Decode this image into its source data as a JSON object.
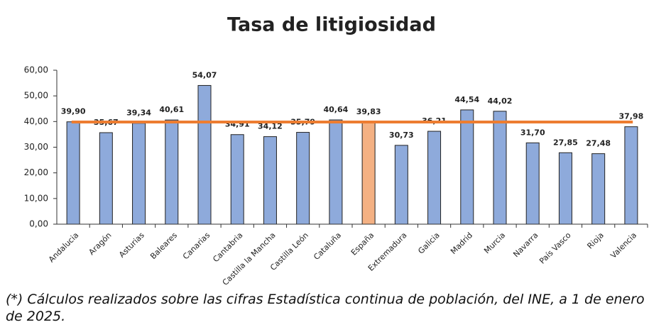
{
  "chart_data": {
    "type": "bar",
    "title": "Tasa de litigiosidad",
    "categories": [
      "Andalucia",
      "Aragón",
      "Asturias",
      "Baleares",
      "Canarias",
      "Cantabria",
      "Castilla la Mancha",
      "Castilla León",
      "Cataluña",
      "España",
      "Extremadura",
      "Galicia",
      "Madrid",
      "Murcia",
      "Navarra",
      "País Vasco",
      "Rioja",
      "Valencia"
    ],
    "values": [
      39.9,
      35.67,
      39.34,
      40.61,
      54.07,
      34.91,
      34.12,
      35.79,
      40.64,
      39.83,
      30.73,
      36.21,
      44.54,
      44.02,
      31.7,
      27.85,
      27.48,
      37.98
    ],
    "value_labels": [
      "39,90",
      "35,67",
      "39,34",
      "40,61",
      "54,07",
      "34,91",
      "34,12",
      "35,79",
      "40,64",
      "39,83",
      "30,73",
      "36,21",
      "44,54",
      "44,02",
      "31,70",
      "27,85",
      "27,48",
      "37,98"
    ],
    "colors": [
      "#8eaadb",
      "#8eaadb",
      "#8eaadb",
      "#8eaadb",
      "#8eaadb",
      "#8eaadb",
      "#8eaadb",
      "#8eaadb",
      "#8eaadb",
      "#f4b183",
      "#8eaadb",
      "#8eaadb",
      "#8eaadb",
      "#8eaadb",
      "#8eaadb",
      "#8eaadb",
      "#8eaadb",
      "#8eaadb"
    ],
    "reference_line": {
      "value": 39.83,
      "color": "#ed7d31"
    },
    "ylim": [
      0,
      60
    ],
    "yticks": [
      {
        "value": 0,
        "label": "0,00"
      },
      {
        "value": 10,
        "label": "10,00"
      },
      {
        "value": 20,
        "label": "20,00"
      },
      {
        "value": 30,
        "label": "30,00"
      },
      {
        "value": 40,
        "label": "40,00"
      },
      {
        "value": 50,
        "label": "50,00"
      },
      {
        "value": 60,
        "label": "60,00"
      }
    ],
    "footnote": "(*) Cálculos realizados sobre las cifras Estadística continua de población, del INE, a 1 de enero de 2025."
  }
}
